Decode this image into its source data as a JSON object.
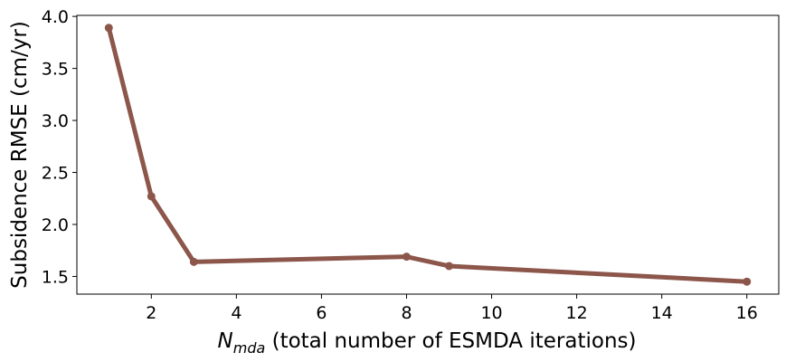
{
  "chart_data": {
    "type": "line",
    "x": [
      1,
      2,
      3,
      8,
      9,
      16
    ],
    "series": [
      {
        "values": [
          3.89,
          2.27,
          1.64,
          1.69,
          1.6,
          1.45
        ],
        "color": "#8c564b"
      }
    ],
    "xlabel": {
      "symbol": "N",
      "subscript": "mda",
      "text": " (total number of ESMDA iterations)"
    },
    "ylabel": "Subsidence RMSE (cm/yr)",
    "xlim": [
      0.25,
      16.75
    ],
    "ylim": [
      1.33,
      4.01
    ],
    "xticks": [
      2,
      4,
      6,
      8,
      10,
      12,
      14,
      16
    ],
    "xtick_labels": [
      "2",
      "4",
      "6",
      "8",
      "10",
      "12",
      "14",
      "16"
    ],
    "yticks": [
      1.5,
      2.0,
      2.5,
      3.0,
      3.5,
      4.0
    ],
    "ytick_labels": [
      "1.5",
      "2.0",
      "2.5",
      "3.0",
      "3.5",
      "4.0"
    ],
    "grid": false,
    "legend": "none"
  }
}
